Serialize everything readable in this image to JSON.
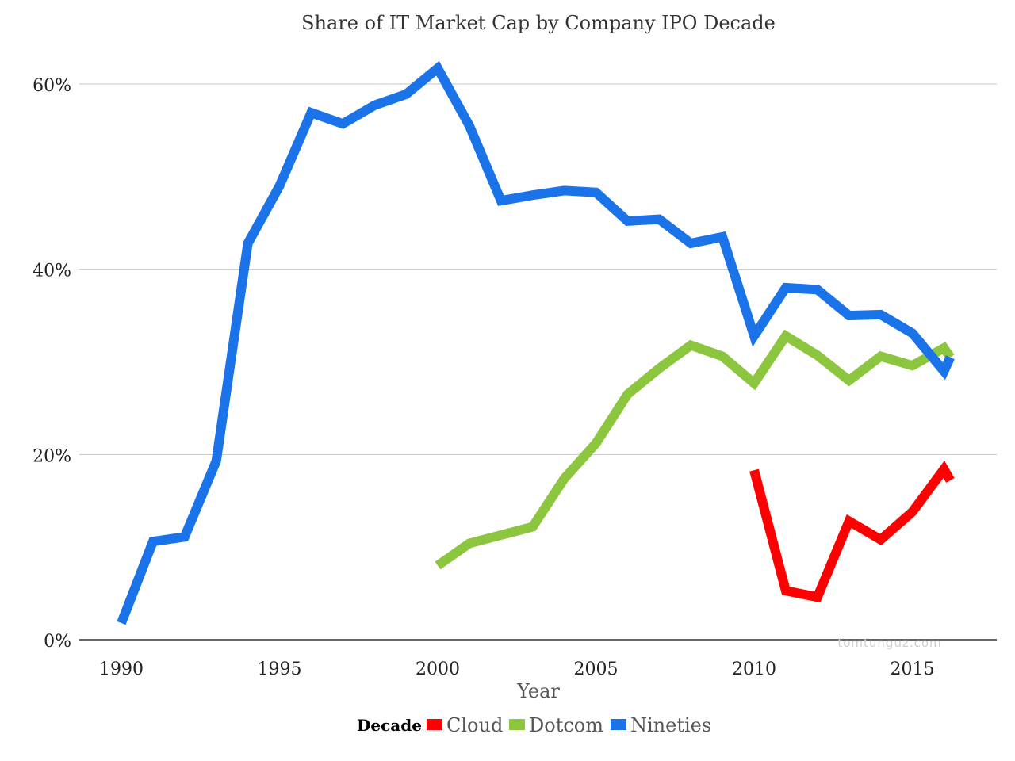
{
  "chart_data": {
    "type": "line",
    "title": "Share of IT Market Cap by Company IPO Decade",
    "xlabel": "Year",
    "ylabel": "",
    "xlim": [
      1990,
      2016
    ],
    "ylim": [
      0,
      0.6
    ],
    "x_ticks": [
      "1990",
      "1995",
      "2000",
      "2005",
      "2010",
      "2015"
    ],
    "y_ticks": [
      "0%",
      "20%",
      "40%",
      "60%"
    ],
    "grid": true,
    "legend": {
      "title": "Decade",
      "position": "bottom"
    },
    "watermark": "tomtunguz.com",
    "series": [
      {
        "name": "Cloud",
        "color": "#ff0000",
        "x": [
          2010,
          2011,
          2012,
          2013,
          2014,
          2015,
          2016,
          2016.2
        ],
        "values": [
          0.183,
          0.053,
          0.046,
          0.128,
          0.108,
          0.138,
          0.184,
          0.172
        ]
      },
      {
        "name": "Dotcom",
        "color": "#8cc63f",
        "x": [
          2000,
          2001,
          2002,
          2003,
          2004,
          2005,
          2006,
          2007,
          2008,
          2009,
          2010,
          2011,
          2012,
          2013,
          2014,
          2015,
          2016,
          2016.2
        ],
        "values": [
          0.08,
          0.104,
          0.113,
          0.122,
          0.174,
          0.212,
          0.265,
          0.293,
          0.318,
          0.306,
          0.277,
          0.328,
          0.307,
          0.28,
          0.306,
          0.296,
          0.315,
          0.305
        ]
      },
      {
        "name": "Nineties",
        "color": "#1a73e8",
        "x": [
          1990,
          1991,
          1992,
          1993,
          1994,
          1995,
          1996,
          1997,
          1998,
          1999,
          2000,
          2001,
          2002,
          2003,
          2004,
          2005,
          2006,
          2007,
          2008,
          2009,
          2010,
          2011,
          2012,
          2013,
          2014,
          2015,
          2016,
          2016.2
        ],
        "values": [
          0.018,
          0.106,
          0.111,
          0.193,
          0.428,
          0.49,
          0.569,
          0.557,
          0.577,
          0.589,
          0.617,
          0.555,
          0.474,
          0.48,
          0.485,
          0.483,
          0.452,
          0.454,
          0.428,
          0.435,
          0.328,
          0.38,
          0.378,
          0.35,
          0.351,
          0.331,
          0.29,
          0.305
        ]
      }
    ]
  }
}
